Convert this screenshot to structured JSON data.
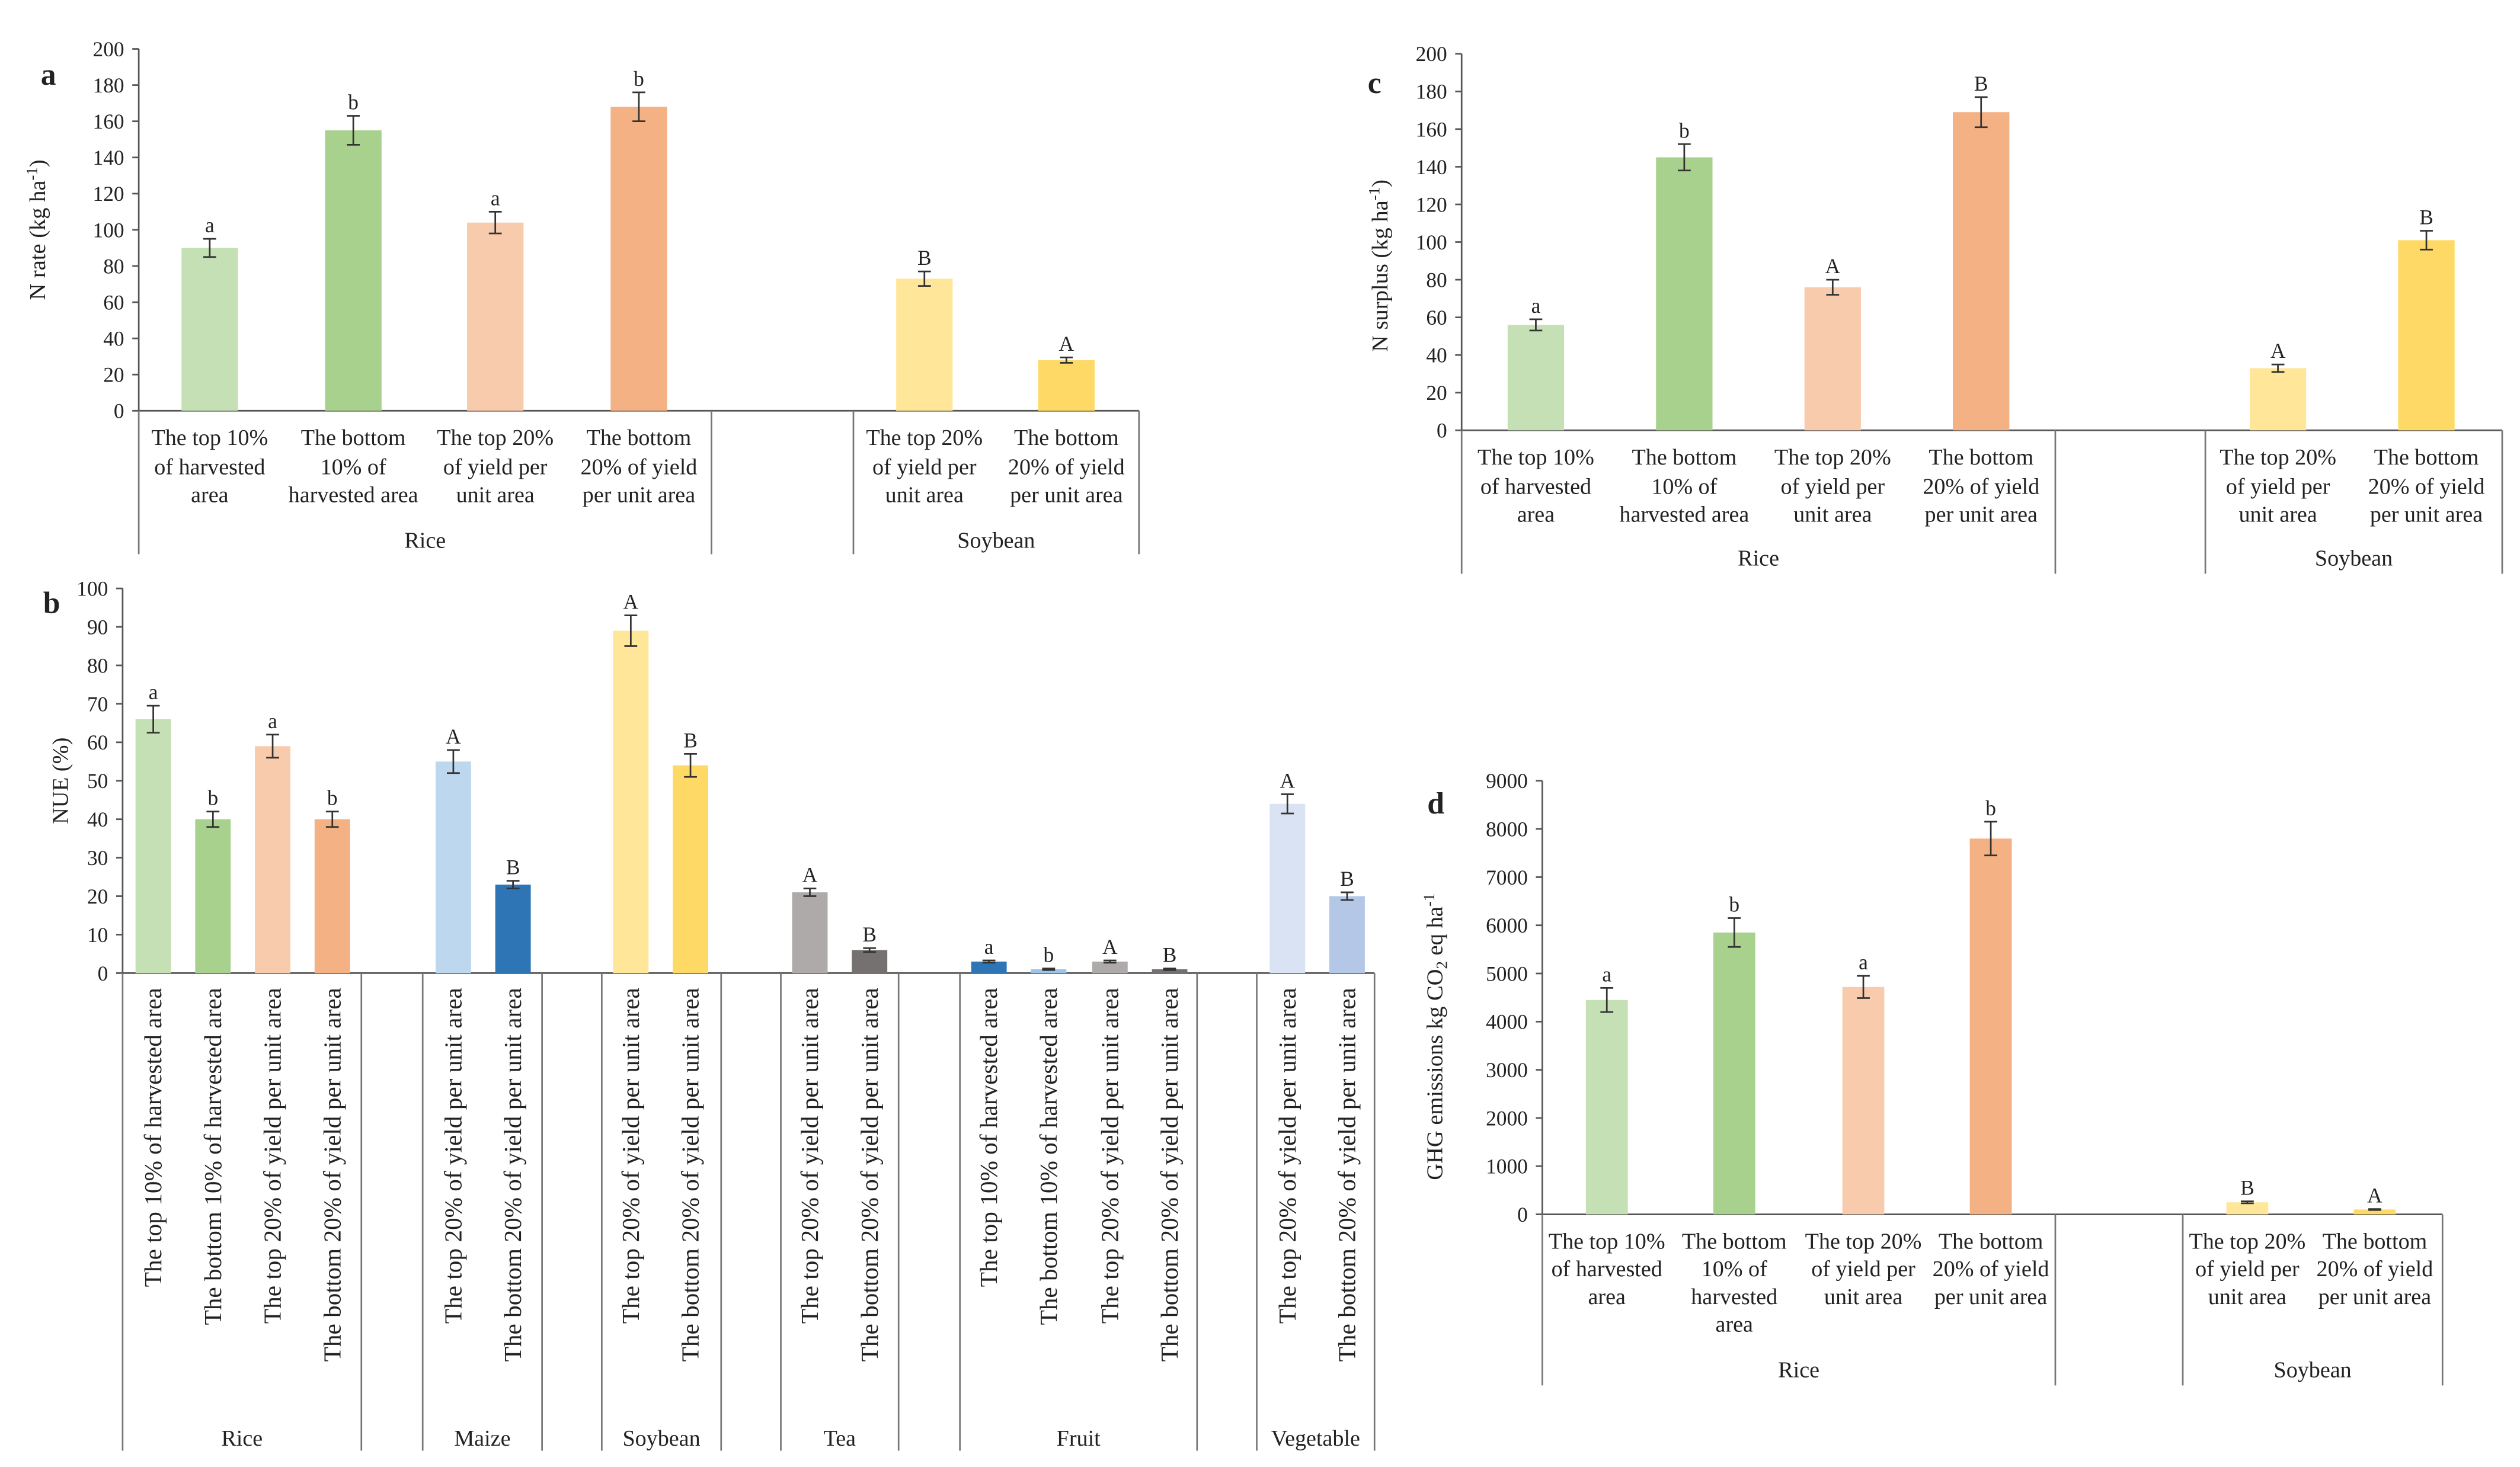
{
  "chart_data": [
    {
      "type": "bar",
      "panel_label": "a",
      "ylabel": "N rate (kg ha",
      "ylabel_sup": "-1",
      "ylabel_end": ")",
      "ylim": [
        0,
        200
      ],
      "yticks": [
        0,
        20,
        40,
        60,
        80,
        100,
        120,
        140,
        160,
        180,
        200
      ],
      "groups": [
        {
          "name": "Rice",
          "bars": [
            {
              "label": "The top 10%\nof harvested\narea",
              "value": 90,
              "err": 5,
              "letter": "a",
              "color": "#c5e0b4"
            },
            {
              "label": "The bottom\n10% of\nharvested area",
              "value": 155,
              "err": 8,
              "letter": "b",
              "color": "#a9d18e"
            },
            {
              "label": "The top 20%\nof yield per\nunit area",
              "value": 104,
              "err": 6,
              "letter": "a",
              "color": "#f8cbad"
            },
            {
              "label": "The bottom\n20% of yield\nper unit area",
              "value": 168,
              "err": 8,
              "letter": "b",
              "color": "#f4b183"
            }
          ]
        },
        {
          "name": "Soybean",
          "bars": [
            {
              "label": "The top 20%\nof yield per\nunit area",
              "value": 73,
              "err": 4,
              "letter": "B",
              "color": "#ffe699"
            },
            {
              "label": "The bottom\n20% of yield\nper unit area",
              "value": 28,
              "err": 1.5,
              "letter": "A",
              "color": "#ffd966"
            }
          ]
        }
      ]
    },
    {
      "type": "bar",
      "panel_label": "b",
      "ylabel": "NUE (%)",
      "ylim": [
        0,
        100
      ],
      "yticks": [
        0,
        10,
        20,
        30,
        40,
        50,
        60,
        70,
        80,
        90,
        100
      ],
      "groups": [
        {
          "name": "Rice",
          "bars": [
            {
              "label": "The top 10% of harvested area",
              "value": 66,
              "err": 3.5,
              "letter": "a",
              "color": "#c5e0b4"
            },
            {
              "label": "The bottom 10% of harvested area",
              "value": 40,
              "err": 2,
              "letter": "b",
              "color": "#a9d18e"
            },
            {
              "label": "The top 20% of yield per unit area",
              "value": 59,
              "err": 3,
              "letter": "a",
              "color": "#f8cbad"
            },
            {
              "label": "The bottom 20% of yield per unit area",
              "value": 40,
              "err": 2,
              "letter": "b",
              "color": "#f4b183"
            }
          ]
        },
        {
          "name": "Maize",
          "bars": [
            {
              "label": "The top 20% of yield per unit area",
              "value": 55,
              "err": 3,
              "letter": "A",
              "color": "#bdd7ee"
            },
            {
              "label": "The bottom 20% of yield per unit area",
              "value": 23,
              "err": 1,
              "letter": "B",
              "color": "#2e75b6"
            }
          ]
        },
        {
          "name": "Soybean",
          "bars": [
            {
              "label": "The top 20% of yield per unit area",
              "value": 89,
              "err": 4,
              "letter": "A",
              "color": "#ffe699"
            },
            {
              "label": "The bottom 20% of yield per unit area",
              "value": 54,
              "err": 3,
              "letter": "B",
              "color": "#ffd966"
            }
          ]
        },
        {
          "name": "Tea",
          "bars": [
            {
              "label": "The top 20% of yield per unit area",
              "value": 21,
              "err": 1,
              "letter": "A",
              "color": "#aeaaaa"
            },
            {
              "label": "The bottom 20% of yield per unit area",
              "value": 6,
              "err": 0.5,
              "letter": "B",
              "color": "#767171"
            }
          ]
        },
        {
          "name": "Fruit",
          "bars": [
            {
              "label": "The top 10% of harvested area",
              "value": 3,
              "err": 0.3,
              "letter": "a",
              "color": "#2e75b6"
            },
            {
              "label": "The bottom 10% of harvested area",
              "value": 1,
              "err": 0.2,
              "letter": "b",
              "color": "#9dc3e6"
            },
            {
              "label": "The top 20% of yield per unit area",
              "value": 3,
              "err": 0.3,
              "letter": "A",
              "color": "#aeaaaa"
            },
            {
              "label": "The bottom 20% of yield per unit area",
              "value": 1,
              "err": 0.2,
              "letter": "B",
              "color": "#767171"
            }
          ]
        },
        {
          "name": "Vegetable",
          "bars": [
            {
              "label": "The top 20% of yield per unit area",
              "value": 44,
              "err": 2.5,
              "letter": "A",
              "color": "#dae3f3"
            },
            {
              "label": "The bottom 20% of yield per unit area",
              "value": 20,
              "err": 1,
              "letter": "B",
              "color": "#b4c7e7"
            }
          ]
        }
      ]
    },
    {
      "type": "bar",
      "panel_label": "c",
      "ylabel": "N surplus (kg ha",
      "ylabel_sup": "-1",
      "ylabel_end": ")",
      "ylim": [
        0,
        200
      ],
      "yticks": [
        0,
        20,
        40,
        60,
        80,
        100,
        120,
        140,
        160,
        180,
        200
      ],
      "groups": [
        {
          "name": "Rice",
          "bars": [
            {
              "label": "The top 10%\nof harvested\narea",
              "value": 56,
              "err": 3,
              "letter": "a",
              "color": "#c5e0b4"
            },
            {
              "label": "The bottom\n10% of\nharvested area",
              "value": 145,
              "err": 7,
              "letter": "b",
              "color": "#a9d18e"
            },
            {
              "label": "The top 20%\nof yield per\nunit area",
              "value": 76,
              "err": 4,
              "letter": "A",
              "color": "#f8cbad"
            },
            {
              "label": "The bottom\n20% of yield\nper unit area",
              "value": 169,
              "err": 8,
              "letter": "B",
              "color": "#f4b183"
            }
          ]
        },
        {
          "name": "Soybean",
          "bars": [
            {
              "label": "The top 20%\nof yield per\nunit area",
              "value": 33,
              "err": 2,
              "letter": "A",
              "color": "#ffe699"
            },
            {
              "label": "The bottom\n20% of yield\nper unit area",
              "value": 101,
              "err": 5,
              "letter": "B",
              "color": "#ffd966"
            }
          ]
        }
      ]
    },
    {
      "type": "bar",
      "panel_label": "d",
      "ylabel": "GHG emissions kg CO",
      "ylabel_sub": "2",
      "ylabel_end": " eq ha",
      "ylabel_sup": "-1",
      "ylim": [
        0,
        9000
      ],
      "yticks": [
        0,
        1000,
        2000,
        3000,
        4000,
        5000,
        6000,
        7000,
        8000,
        9000
      ],
      "groups": [
        {
          "name": "Rice",
          "bars": [
            {
              "label": "The top 10%\nof harvested\narea",
              "value": 4450,
              "err": 250,
              "letter": "a",
              "color": "#c5e0b4"
            },
            {
              "label": "The bottom\n10% of\nharvested\narea",
              "value": 5850,
              "err": 300,
              "letter": "b",
              "color": "#a9d18e"
            },
            {
              "label": "The top 20%\nof yield per\nunit area",
              "value": 4720,
              "err": 230,
              "letter": "a",
              "color": "#f8cbad"
            },
            {
              "label": "The bottom\n20% of yield\nper unit area",
              "value": 7800,
              "err": 350,
              "letter": "b",
              "color": "#f4b183"
            }
          ]
        },
        {
          "name": "Soybean",
          "bars": [
            {
              "label": "The top 20%\nof yield per\nunit area",
              "value": 250,
              "err": 20,
              "letter": "B",
              "color": "#ffe699"
            },
            {
              "label": "The bottom\n20% of yield\nper unit area",
              "value": 100,
              "err": 10,
              "letter": "A",
              "color": "#ffd966"
            }
          ]
        }
      ]
    }
  ]
}
